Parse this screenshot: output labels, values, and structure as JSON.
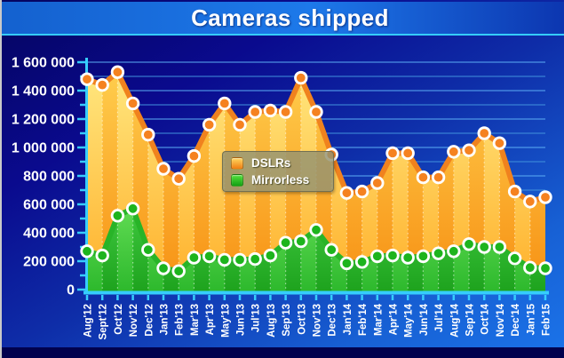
{
  "title": "Cameras shipped",
  "legend": {
    "items": [
      {
        "label": "DSLRs"
      },
      {
        "label": "Mirrorless"
      }
    ]
  },
  "chart_data": {
    "type": "area",
    "title": "Cameras shipped",
    "categories": [
      "Aug'12",
      "Sept'12",
      "Oct'12",
      "Nov'12",
      "Dec'12",
      "Jan'13",
      "Feb'13",
      "Mar'13",
      "Apr'13",
      "May'13",
      "Jun'13",
      "Jul'13",
      "Aug'13",
      "Sep'13",
      "Oct'13",
      "Nov'13",
      "Dec'13",
      "Jan'14",
      "Feb'14",
      "Mar'14",
      "Apr'14",
      "May'14",
      "Jun'14",
      "Jul'14",
      "Aug'14",
      "Sep'14",
      "Oct'14",
      "Nov'14",
      "Dec'14",
      "Jan'15",
      "Feb'15"
    ],
    "series": [
      {
        "name": "DSLRs",
        "color": "#f07d1a",
        "values": [
          1480000,
          1440000,
          1530000,
          1310000,
          1090000,
          850000,
          780000,
          940000,
          1160000,
          1310000,
          1160000,
          1250000,
          1260000,
          1250000,
          1490000,
          1250000,
          950000,
          680000,
          690000,
          750000,
          960000,
          960000,
          790000,
          790000,
          970000,
          980000,
          1100000,
          1030000,
          690000,
          620000,
          650000
        ]
      },
      {
        "name": "Mirrorless",
        "color": "#28b428",
        "values": [
          270000,
          240000,
          520000,
          570000,
          280000,
          150000,
          130000,
          225000,
          235000,
          210000,
          210000,
          215000,
          240000,
          330000,
          340000,
          420000,
          280000,
          185000,
          195000,
          235000,
          240000,
          225000,
          235000,
          255000,
          270000,
          320000,
          300000,
          300000,
          220000,
          155000,
          150000
        ]
      }
    ],
    "ylim": [
      0,
      1600000
    ],
    "y_ticks": [
      {
        "value": 0,
        "label": "0"
      },
      {
        "value": 200000,
        "label": "200 000"
      },
      {
        "value": 400000,
        "label": "400 000"
      },
      {
        "value": 600000,
        "label": "600 000"
      },
      {
        "value": 800000,
        "label": "800 000"
      },
      {
        "value": 1000000,
        "label": "1 000 000"
      },
      {
        "value": 1200000,
        "label": "1 200 000"
      },
      {
        "value": 1400000,
        "label": "1 400 000"
      },
      {
        "value": 1600000,
        "label": "1 600 000"
      }
    ],
    "minor_grid_step": 100000,
    "grid": true,
    "legend_position": "inside-center-left",
    "x_label_rotation": -90
  },
  "colors": {
    "axis_cyan": "#35cdfe",
    "grid_major": "#5caef5",
    "grid_minor": "#4192dd",
    "label_white": "#ffffff",
    "dslr_line": "#f0821e",
    "dslr_marker": "#f58220",
    "dslr_stripe_light_top": "#ffe982",
    "dslr_stripe_light_bottom": "#ffaf29",
    "dslr_stripe_dark_top": "#ffd04f",
    "dslr_stripe_dark_bottom": "#f78f12",
    "mirrorless_line": "#28b428",
    "mirrorless_marker": "#1db41d",
    "mirrorless_stripe_light_top": "#63dd55",
    "mirrorless_stripe_light_bottom": "#2cb82c",
    "mirrorless_stripe_dark_top": "#40ca40",
    "mirrorless_stripe_dark_bottom": "#1da21d",
    "dslr_swatch_top": "#ffd65e",
    "dslr_swatch_bottom": "#f07d12",
    "mirrorless_swatch_top": "#55e23c",
    "mirrorless_swatch_bottom": "#14a014",
    "titlebar_blue": "#1d79ea",
    "background_navy": "#0a0a8e",
    "background_bright": "#1b74ea",
    "bottom_strip": "#01014e"
  }
}
